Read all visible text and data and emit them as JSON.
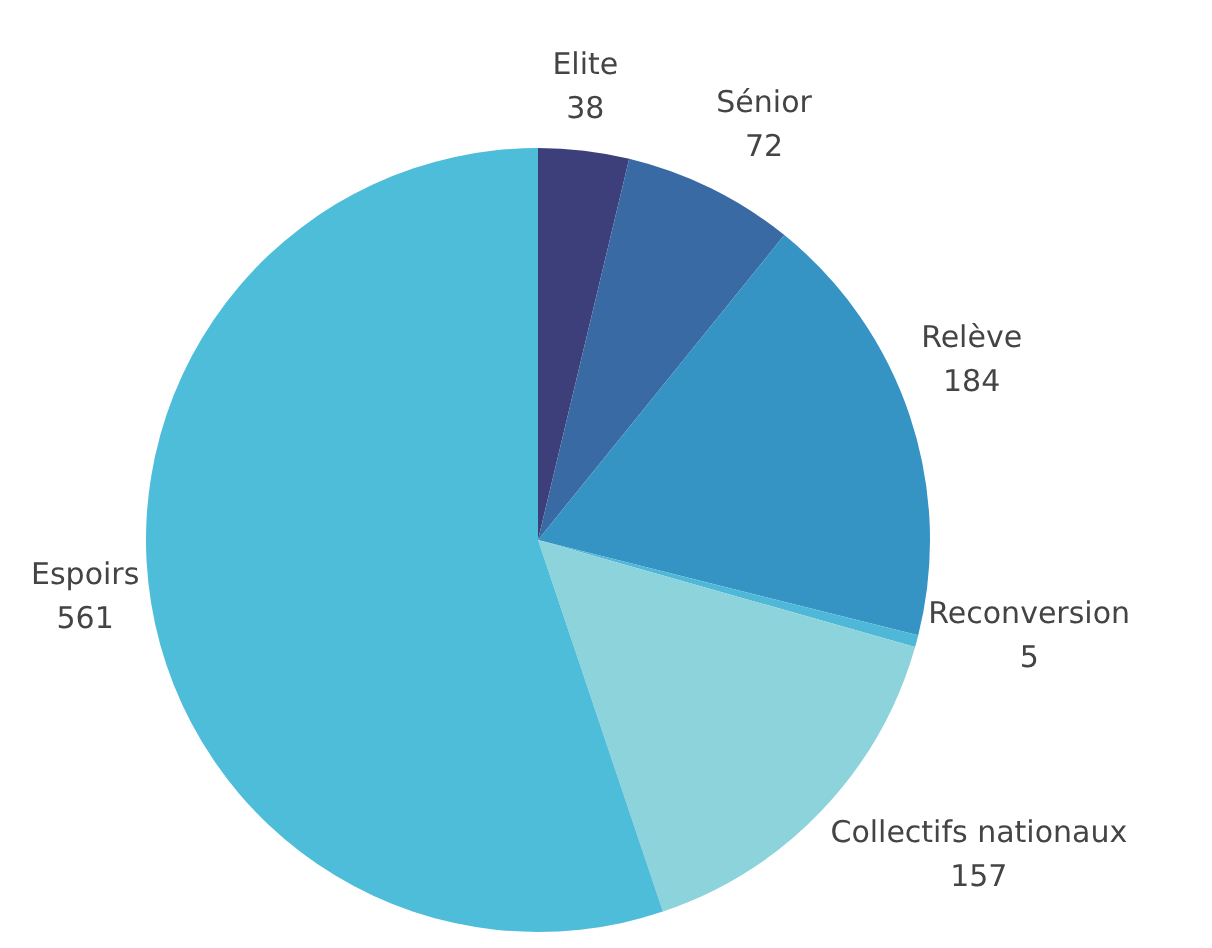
{
  "chart_data": {
    "type": "pie",
    "categories": [
      "Elite",
      "Sénior",
      "Relève",
      "Reconversion",
      "Collectifs nationaux",
      "Espoirs"
    ],
    "values": [
      38,
      72,
      184,
      5,
      157,
      561
    ],
    "colors": [
      "#3d3f7a",
      "#3a6aa3",
      "#3594c4",
      "#4fb8d8",
      "#8dd3dc",
      "#4dbdd9"
    ],
    "data_labels": true,
    "legend": false
  }
}
